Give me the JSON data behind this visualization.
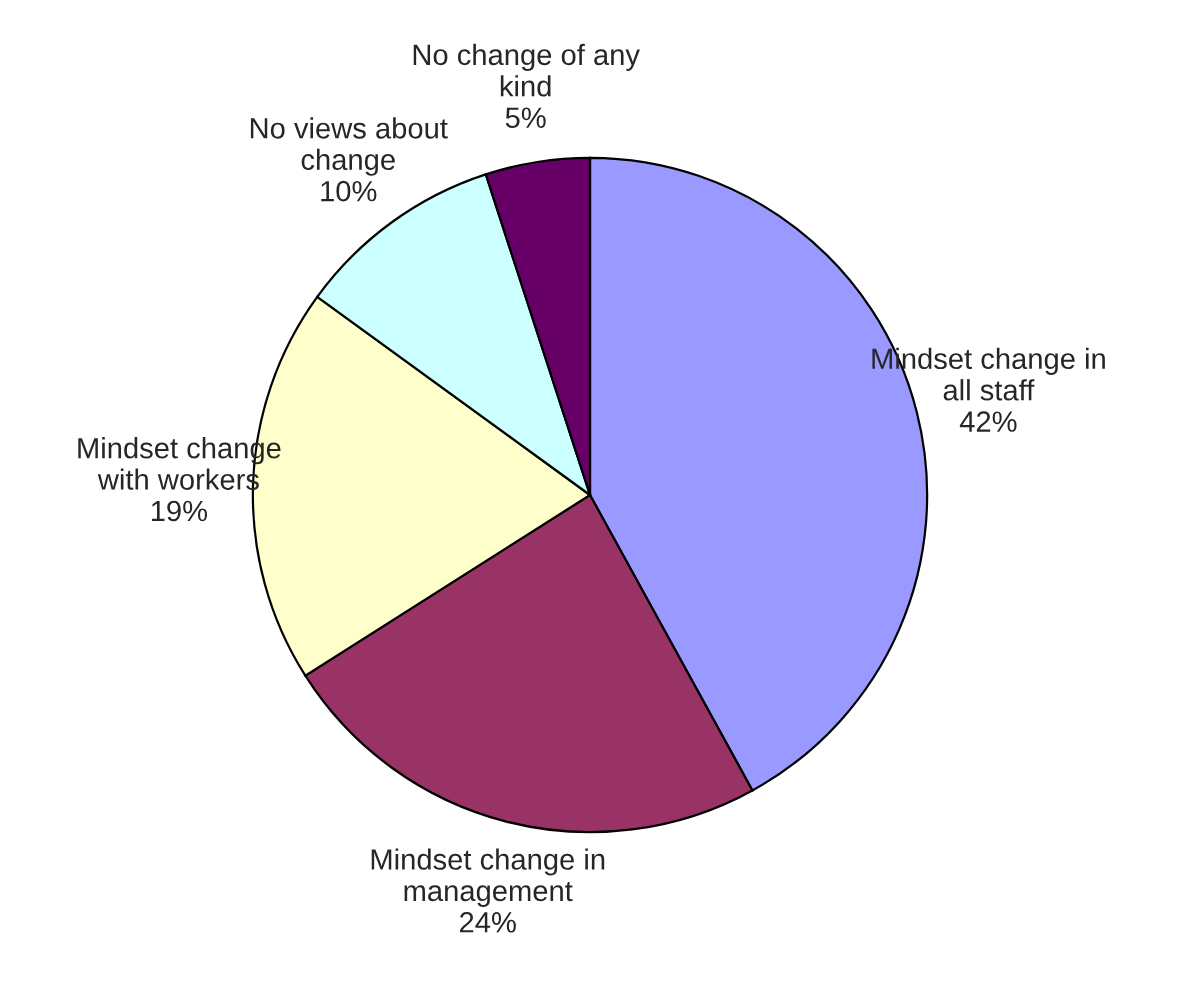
{
  "chart_data": {
    "type": "pie",
    "categories": [
      "Mindset change in\nall staff",
      "Mindset change in\nmanagement",
      "Mindset change\nwith workers",
      "No views about\nchange",
      "No change of any\nkind"
    ],
    "values": [
      42,
      24,
      19,
      10,
      5
    ],
    "value_labels": [
      "42%",
      "24%",
      "19%",
      "10%",
      "5%"
    ],
    "colors": [
      "#9999ff",
      "#993366",
      "#ffffcc",
      "#ccffff",
      "#660066"
    ],
    "legend": false
  }
}
